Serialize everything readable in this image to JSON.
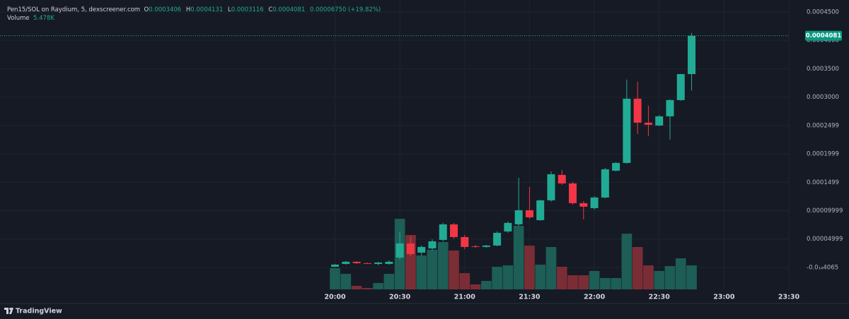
{
  "chart_data": {
    "type": "candlestick",
    "title": "Pen15/SOL on Raydium, 5, dexscreener.com",
    "ohlc_labels": [
      "O",
      "H",
      "L",
      "C"
    ],
    "change_label": "0.00006750 (+19.82%)",
    "x": [
      "20:00",
      "20:05",
      "20:10",
      "20:15",
      "20:20",
      "20:25",
      "20:30",
      "20:35",
      "20:40",
      "20:45",
      "20:50",
      "20:55",
      "21:00",
      "21:05",
      "21:10",
      "21:15",
      "21:20",
      "21:25",
      "21:30",
      "21:35",
      "21:40",
      "21:45",
      "21:50",
      "21:55",
      "22:00",
      "22:05",
      "22:10",
      "22:15",
      "22:20",
      "22:25",
      "22:30",
      "22:35",
      "22:40",
      "22:45"
    ],
    "open": [
      1.2e-06,
      6.2e-06,
      1e-05,
      7.5e-06,
      6.2e-06,
      6.2e-06,
      1.74e-05,
      4.23e-05,
      2.61e-05,
      3.36e-05,
      4.85e-05,
      7.59e-05,
      5.35e-05,
      3.73e-05,
      3.61e-05,
      3.86e-05,
      6.34e-05,
      7.59e-05,
      0.0001008,
      8.33e-05,
      0.0001182,
      0.000163,
      0.000148,
      0.0001132,
      0.0001045,
      0.0001232,
      0.0001704,
      0.0001841,
      0.0002973,
      0.000255,
      0.00025,
      0.0002662,
      0.0002948,
      0.0003406
    ],
    "high": [
      6.2e-06,
      1.12e-05,
      1.12e-05,
      8.5e-06,
      1e-05,
      1.24e-05,
      6.34e-05,
      5.47e-05,
      3.86e-05,
      4.98e-05,
      7.84e-05,
      7.84e-05,
      5.72e-05,
      3.98e-05,
      3.98e-05,
      6.34e-05,
      8.09e-05,
      0.000158,
      0.0001418,
      0.0001194,
      0.0001692,
      0.0001717,
      0.0001505,
      0.0001169,
      0.0001256,
      0.0001754,
      0.0001854,
      0.0003309,
      0.0003272,
      0.0002849,
      0.0002687,
      0.0002961,
      0.000341,
      0.0004131
    ],
    "low": [
      5e-07,
      5e-06,
      6.2e-06,
      6.5e-06,
      3.7e-06,
      5e-06,
      1.37e-05,
      1.99e-05,
      2.11e-05,
      2.99e-05,
      4.6e-05,
      5.1e-05,
      3.23e-05,
      3.48e-05,
      3.48e-05,
      3.73e-05,
      6.1e-05,
      7.34e-05,
      8.58e-05,
      8.21e-05,
      0.0001157,
      0.0001455,
      0.0001107,
      8.46e-05,
      0.000102,
      0.0001219,
      0.0001692,
      0.0001829,
      0.0002351,
      0.0002314,
      0.0002488,
      0.0002252,
      0.0002936,
      0.0003116
    ],
    "close": [
      5e-06,
      1e-05,
      7.5e-06,
      7e-06,
      8.7e-06,
      1e-05,
      4.23e-05,
      2.36e-05,
      3.61e-05,
      4.6e-05,
      7.59e-05,
      5.35e-05,
      3.61e-05,
      3.61e-05,
      3.86e-05,
      6.1e-05,
      7.84e-05,
      0.0001008,
      8.83e-05,
      0.0001182,
      0.0001642,
      0.000148,
      0.0001132,
      0.000107,
      0.0001232,
      0.0001729,
      0.0001841,
      0.0002973,
      0.000255,
      0.0002513,
      0.0002662,
      0.0002948,
      0.0003406,
      0.0004081
    ],
    "volume": {
      "name": "Volume",
      "value_label": "5.478K",
      "values": [
        4830,
        3540,
        805,
        322,
        1450,
        3540,
        16100,
        12400,
        7730,
        9020,
        10800,
        8860,
        3700,
        1130,
        1930,
        5150,
        5480,
        14500,
        9980,
        5640,
        9660,
        5150,
        3220,
        3220,
        4190,
        2580,
        2580,
        12700,
        9660,
        5470,
        4190,
        5310,
        7080,
        5478
      ]
    },
    "up_color": "#22ab94",
    "down_color": "#f23645",
    "up_volume_color": "#1d5e57",
    "down_volume_color": "#7b2d36",
    "ylim": [
      -3.86e-05,
      0.0004711
    ],
    "yticks": [
      {
        "value": -4.065e-16,
        "label": "-0.0₁₄4065"
      },
      {
        "value": 4.999e-05,
        "label": "0.00004999"
      },
      {
        "value": 9.999e-05,
        "label": "0.00009999"
      },
      {
        "value": 0.0001499,
        "label": "0.0001499"
      },
      {
        "value": 0.0001999,
        "label": "0.0001999"
      },
      {
        "value": 0.0002499,
        "label": "0.0002499"
      },
      {
        "value": 0.0003,
        "label": "0.0003000"
      },
      {
        "value": 0.00035,
        "label": "0.0003500"
      },
      {
        "value": 0.0004,
        "label": "0.0004000"
      },
      {
        "value": 0.00045,
        "label": "0.0004500"
      }
    ],
    "xlim": [
      "17:25",
      "23:30"
    ],
    "xticks": [
      "20:00",
      "20:30",
      "21:00",
      "21:30",
      "22:00",
      "22:30",
      "23:00",
      "23:30"
    ],
    "grid": true
  },
  "branding": "TradingView"
}
